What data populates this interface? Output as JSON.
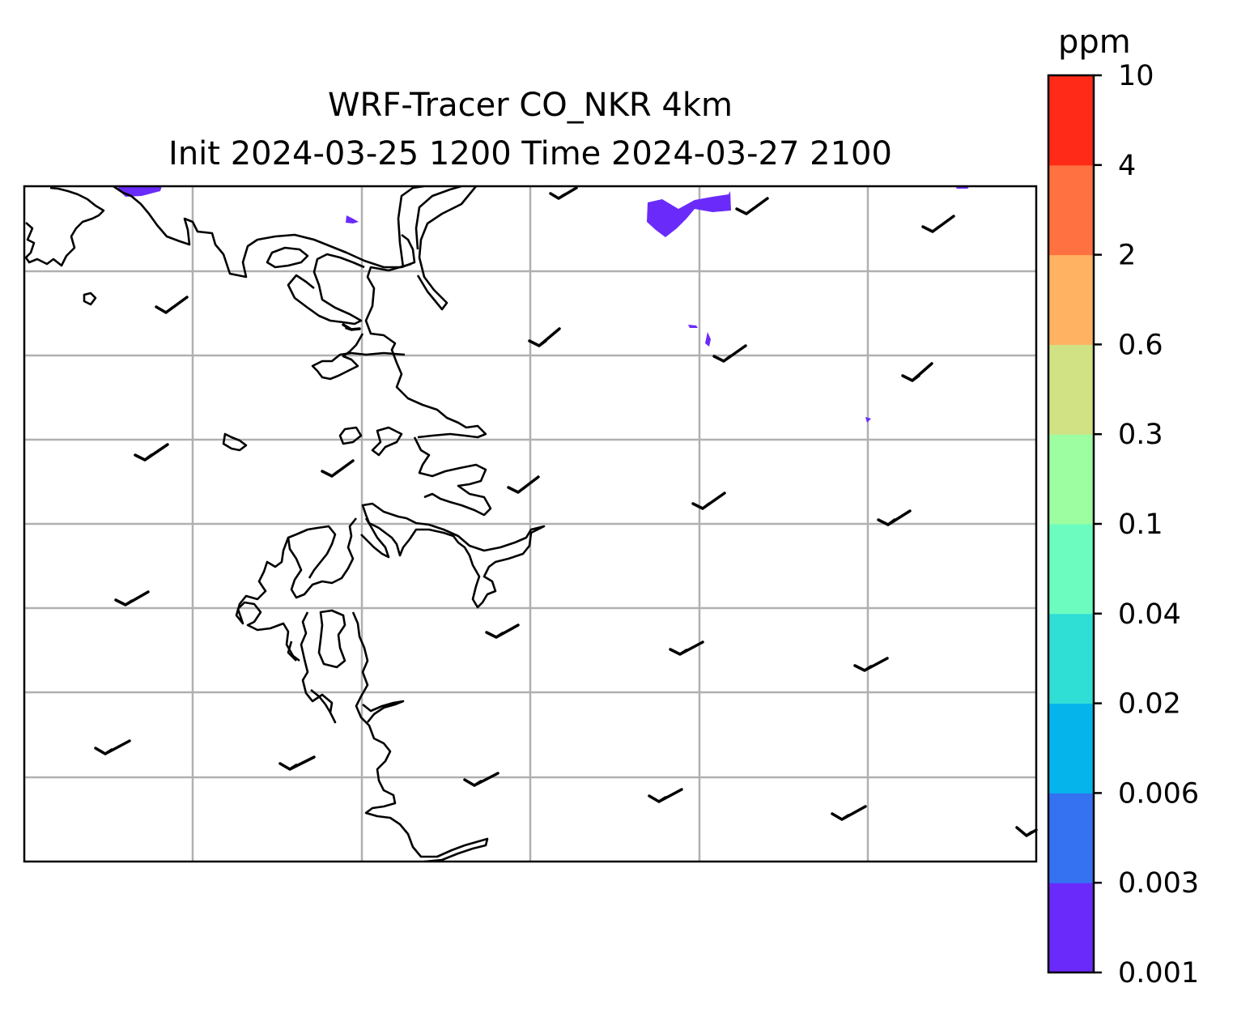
{
  "title": {
    "line1": "WRF-Tracer CO_NKR 4km",
    "line2": "Init 2024-03-25 1200 Time 2024-03-27 2100"
  },
  "colorbar": {
    "unit": "ppm",
    "levels": [
      "0.001",
      "0.003",
      "0.006",
      "0.02",
      "0.04",
      "0.1",
      "0.3",
      "0.6",
      "2",
      "4",
      "10"
    ],
    "colors": [
      "#6a2bfa",
      "#3572f2",
      "#06b4ec",
      "#2fdfd6",
      "#6cfcbf",
      "#9dfda1",
      "#d0e283",
      "#ffb262",
      "#ff7140",
      "#ff2a17"
    ]
  },
  "map": {
    "gridlines": "on",
    "gridline_color": "#b0b0b0",
    "coastline_color": "#000000",
    "wind_barb_color": "#000000",
    "tracer_fill_color": "#6a2bfa",
    "tracer_fill_class": "0.001–0.003 ppm"
  }
}
